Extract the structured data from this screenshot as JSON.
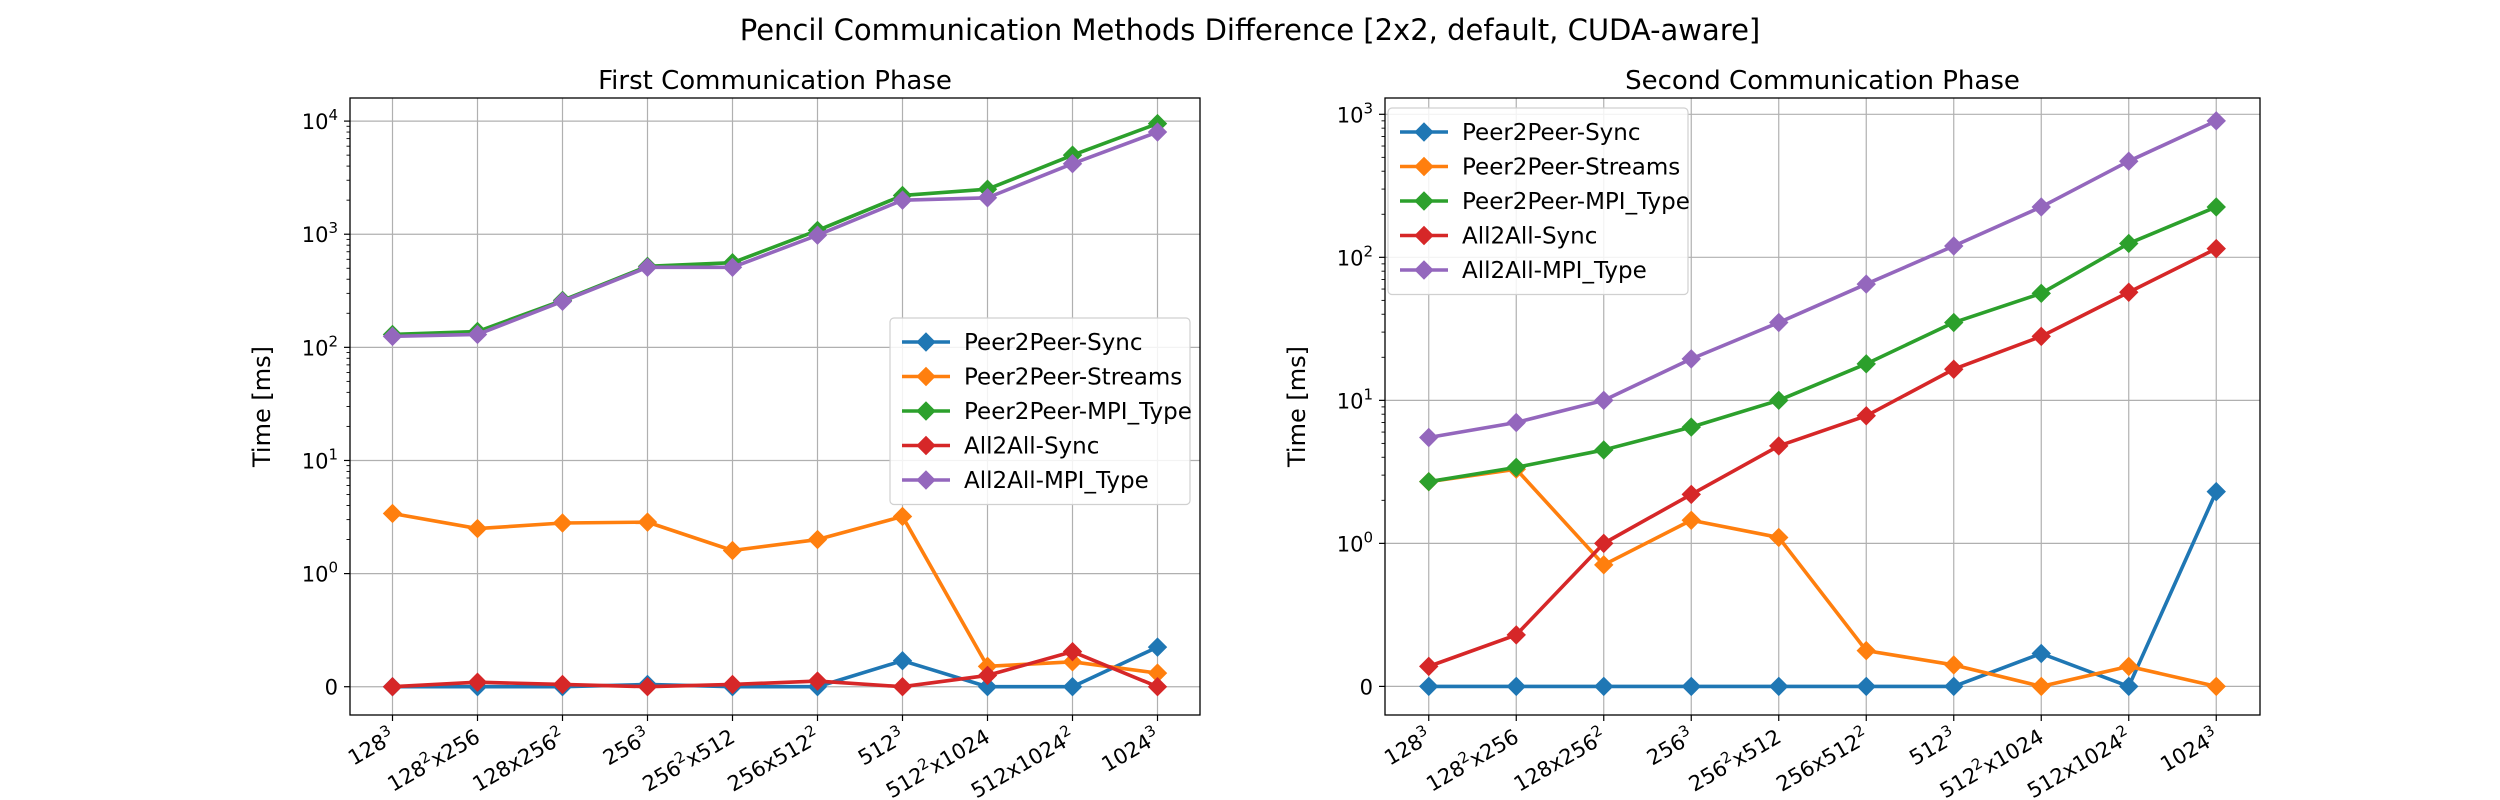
{
  "figure_title": "Pencil Communication Methods Difference [2x2, default, CUDA-aware]",
  "chart_data": [
    {
      "type": "line",
      "title": "First Communication Phase",
      "xlabel": "",
      "ylabel": "Time [ms]",
      "yscale": "symlog",
      "linthresh": 1,
      "ylim": [
        -0.25,
        16000
      ],
      "yticks": [
        0,
        1,
        10,
        100,
        1000,
        10000
      ],
      "ytick_labels": [
        "0",
        "10^0",
        "10^1",
        "10^2",
        "10^3",
        "10^4"
      ],
      "categories": [
        "128^3",
        "128^2x256",
        "128x256^2",
        "256^3",
        "256^2x512",
        "256x512^2",
        "512^3",
        "512^2x1024",
        "512x1024^2",
        "1024^3"
      ],
      "grid": true,
      "legend_position": "center-right",
      "series": [
        {
          "name": "Peer2Peer-Sync",
          "color": "#1f77b4",
          "values": [
            0.0,
            0.0,
            0.0,
            0.02,
            0.0,
            0.0,
            0.23,
            0.0,
            0.0,
            0.35
          ]
        },
        {
          "name": "Peer2Peer-Streams",
          "color": "#ff7f0e",
          "values": [
            3.4,
            2.5,
            2.8,
            2.85,
            1.6,
            2.0,
            3.2,
            0.18,
            0.22,
            0.12
          ]
        },
        {
          "name": "Peer2Peer-MPI_Type",
          "color": "#2ca02c",
          "values": [
            130,
            138,
            260,
            520,
            560,
            1080,
            2200,
            2500,
            5000,
            9500
          ]
        },
        {
          "name": "All2All-Sync",
          "color": "#d62728",
          "values": [
            0.0,
            0.04,
            0.02,
            0.0,
            0.02,
            0.05,
            0.0,
            0.1,
            0.31,
            0.0
          ]
        },
        {
          "name": "All2All-MPI_Type",
          "color": "#9467bd",
          "values": [
            125,
            130,
            255,
            510,
            510,
            980,
            2000,
            2100,
            4200,
            8000
          ]
        }
      ]
    },
    {
      "type": "line",
      "title": "Second Communication Phase",
      "xlabel": "",
      "ylabel": "Time [ms]",
      "yscale": "symlog",
      "linthresh": 1,
      "ylim": [
        -0.2,
        1300
      ],
      "yticks": [
        0,
        1,
        10,
        100,
        1000
      ],
      "ytick_labels": [
        "0",
        "10^0",
        "10^1",
        "10^2",
        "10^3"
      ],
      "categories": [
        "128^3",
        "128^2x256",
        "128x256^2",
        "256^3",
        "256^2x512",
        "256x512^2",
        "512^3",
        "512^2x1024",
        "512x1024^2",
        "1024^3"
      ],
      "grid": true,
      "legend_position": "upper-left",
      "series": [
        {
          "name": "Peer2Peer-Sync",
          "color": "#1f77b4",
          "values": [
            0.0,
            0.0,
            0.0,
            0.0,
            0.0,
            0.0,
            0.0,
            0.23,
            0.0,
            2.3
          ]
        },
        {
          "name": "Peer2Peer-Streams",
          "color": "#ff7f0e",
          "values": [
            2.7,
            3.3,
            0.85,
            1.45,
            1.1,
            0.25,
            0.15,
            0.0,
            0.14,
            0.0
          ]
        },
        {
          "name": "Peer2Peer-MPI_Type",
          "color": "#2ca02c",
          "values": [
            2.7,
            3.4,
            4.5,
            6.5,
            10,
            18,
            35,
            56,
            125,
            225
          ]
        },
        {
          "name": "All2All-Sync",
          "color": "#d62728",
          "values": [
            0.14,
            0.36,
            1.0,
            2.2,
            4.8,
            7.8,
            16.5,
            28,
            57,
            115
          ]
        },
        {
          "name": "All2All-MPI_Type",
          "color": "#9467bd",
          "values": [
            5.5,
            7.0,
            10.0,
            19.5,
            35,
            65,
            120,
            225,
            470,
            900
          ]
        }
      ]
    }
  ]
}
